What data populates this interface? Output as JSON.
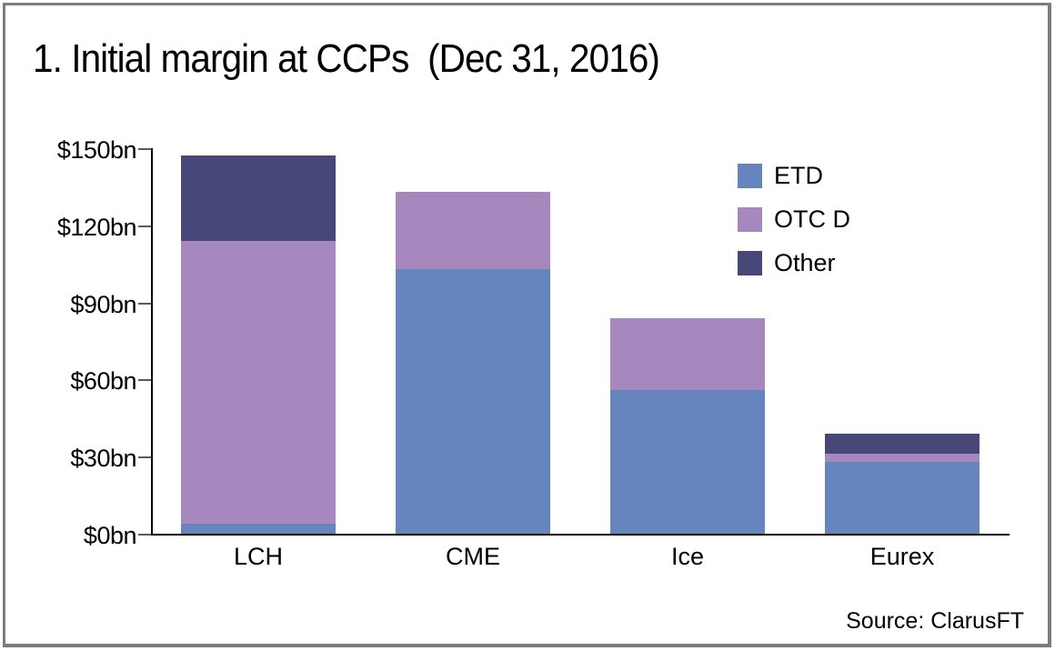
{
  "header": {
    "title": "1. Initial margin at CCPs  (Dec 31, 2016)"
  },
  "source": {
    "label": "Source: ClarusFT"
  },
  "colors": {
    "etd": "#6684BE",
    "otc_d": "#A687BE",
    "other": "#474879",
    "axis": "#000000",
    "tick": "#595959",
    "frame_border": "#7c7c7c",
    "background": "#ffffff"
  },
  "chart_data": {
    "type": "bar",
    "stacked": true,
    "title": "1. Initial margin at CCPs  (Dec 31, 2016)",
    "categories": [
      "LCH",
      "CME",
      "Ice",
      "Eurex"
    ],
    "series": [
      {
        "name": "ETD",
        "color": "#6684BE",
        "values": [
          4,
          103,
          56,
          28
        ]
      },
      {
        "name": "OTC D",
        "color": "#A687BE",
        "values": [
          110,
          30,
          28,
          3
        ]
      },
      {
        "name": "Other",
        "color": "#474879",
        "values": [
          33,
          0,
          0,
          8
        ]
      }
    ],
    "totals": [
      147,
      133,
      84,
      39
    ],
    "xlabel": "",
    "ylabel": "",
    "ylim": [
      0,
      150
    ],
    "y_ticks": [
      {
        "value": 0,
        "label": "$0bn"
      },
      {
        "value": 30,
        "label": "$30bn"
      },
      {
        "value": 60,
        "label": "$60bn"
      },
      {
        "value": 90,
        "label": "$90bn"
      },
      {
        "value": 120,
        "label": "$120bn"
      },
      {
        "value": 150,
        "label": "$150bn"
      }
    ],
    "legend_position": "upper right",
    "grid": false,
    "source": "Source: ClarusFT"
  }
}
